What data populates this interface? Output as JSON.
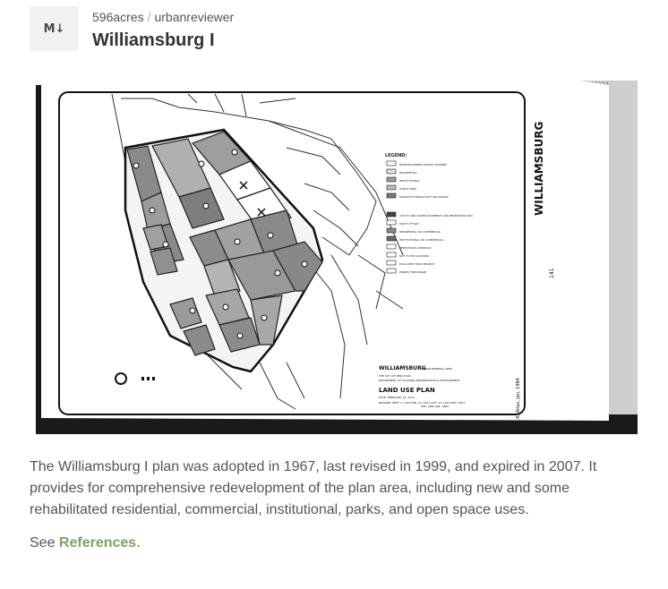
{
  "header": {
    "logo_text": "M↓",
    "breadcrumb": {
      "org": "596acres",
      "separator": "/",
      "repo": "urbanreviewer"
    },
    "title": "Williamsburg I"
  },
  "map": {
    "side_title": "WILLIAMSBURG",
    "page_number": "141",
    "side_note": "U.R. Atlas, Jan. 1984",
    "legend_title": "LEGEND:",
    "legend_items": [
      "REDEVELOPMENT PARCEL NUMBER",
      "RESIDENTIAL",
      "INSTITUTIONAL",
      "PUBLIC PARK",
      "MANUFACTURING/LIGHT INDUSTRIAL",
      "UTILITY AND WATER EASEMENT AND PEDESTRIAN WAY",
      "RIGHT OF WAY",
      "RESIDENTIAL OR COMMERCIAL",
      "INSTITUTIONAL OR COMMERCIAL",
      "PEDESTRIAN OVERPASS",
      "NOT TO BE ACQUIRED",
      "EXCLUDED FROM PROJECT",
      "PROJECT BOUNDARY"
    ],
    "title_block": {
      "name": "WILLIAMSBURG",
      "subtitle": "URBAN RENEWAL AREA",
      "agency1": "THE CITY OF NEW YORK",
      "agency2": "DEPARTMENT OF HOUSING PRESERVATION & DEVELOPMENT",
      "plan": "LAND USE PLAN",
      "date": "DATE: FEBRUARY 15, 1970",
      "revised": "REVISED: SEPT. 1, 1970 FEB. 12, 1971 OCT. 15, 1975 NOV. 1977",
      "revised2": "FEB. 1980 JAN. 1984"
    },
    "street_labels": [
      "SOUTH 4 STREET",
      "DIVISION AVENUE",
      "RODNEY STREET",
      "HEYWARD STREET",
      "MARCY AVENUE",
      "WILSON STREET",
      "BROADWAY",
      "LEE AVENUE",
      "KEAP STREET",
      "HOOPER STREET",
      "UNITED STATES NAVY YARD"
    ]
  },
  "description": "The Williamsburg I plan was adopted in 1967, last revised in 1999, and expired in 2007. It provides for comprehensive redevelopment of the plan area, including new and some rehabilitated residential, commercial, institutional, parks, and open space uses.",
  "see": {
    "prefix": "See ",
    "link": "References",
    "suffix": "."
  }
}
